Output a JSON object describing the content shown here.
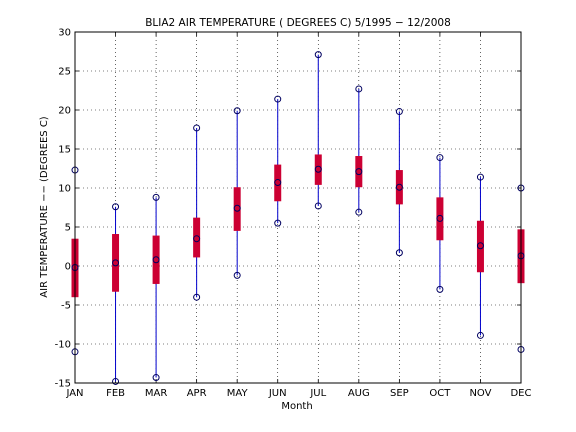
{
  "chart_data": {
    "type": "box",
    "title": "BLIA2  AIR TEMPERATURE ( DEGREES C) 5/1995 − 12/2008",
    "xlabel": "Month",
    "ylabel": "AIR TEMPERATURE −− (DEGREES C)",
    "categories": [
      "JAN",
      "FEB",
      "MAR",
      "APR",
      "MAY",
      "JUN",
      "JUL",
      "AUG",
      "SEP",
      "OCT",
      "NOV",
      "DEC"
    ],
    "ylim": [
      -15,
      30
    ],
    "yticks": [
      -15,
      -10,
      -5,
      0,
      5,
      10,
      15,
      20,
      25,
      30
    ],
    "grid": true,
    "boxes": [
      {
        "min": -11.0,
        "q1": -4.0,
        "median": -0.2,
        "q3": 3.5,
        "max": 12.3
      },
      {
        "min": -14.8,
        "q1": -3.3,
        "median": 0.4,
        "q3": 4.1,
        "max": 7.6
      },
      {
        "min": -14.3,
        "q1": -2.3,
        "median": 0.8,
        "q3": 3.9,
        "max": 8.8
      },
      {
        "min": -4.0,
        "q1": 1.1,
        "median": 3.5,
        "q3": 6.2,
        "max": 17.7
      },
      {
        "min": -1.2,
        "q1": 4.5,
        "median": 7.4,
        "q3": 10.1,
        "max": 19.9
      },
      {
        "min": 5.5,
        "q1": 8.3,
        "median": 10.7,
        "q3": 13.0,
        "max": 21.4
      },
      {
        "min": 7.7,
        "q1": 10.4,
        "median": 12.4,
        "q3": 14.3,
        "max": 27.1
      },
      {
        "min": 6.9,
        "q1": 10.1,
        "median": 12.1,
        "q3": 14.1,
        "max": 22.7
      },
      {
        "min": 1.7,
        "q1": 7.9,
        "median": 10.1,
        "q3": 12.3,
        "max": 19.8
      },
      {
        "min": -3.0,
        "q1": 3.3,
        "median": 6.1,
        "q3": 8.8,
        "max": 13.9
      },
      {
        "min": -8.9,
        "q1": -0.8,
        "median": 2.6,
        "q3": 5.8,
        "max": 11.4
      },
      {
        "min": -10.7,
        "q1": -2.2,
        "median": 1.3,
        "q3": 4.7,
        "max": 10.0
      }
    ],
    "colors": {
      "whisker": "#0000cc",
      "box": "#cc0033",
      "marker": "#000060"
    }
  }
}
